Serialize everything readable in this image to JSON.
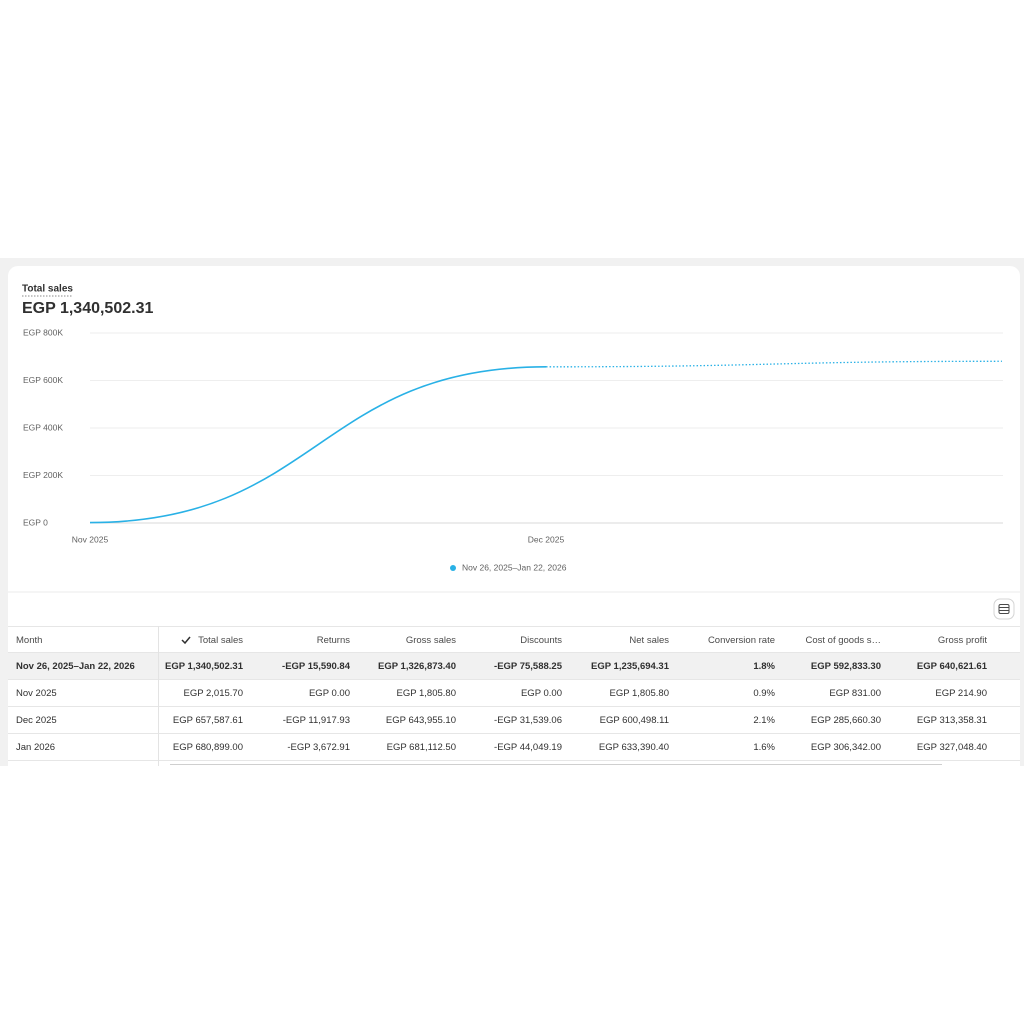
{
  "chart_data": {
    "type": "line",
    "title": "Total sales",
    "subtitle": "EGP 1,340,502.31",
    "categories": [
      "Nov 2025",
      "Dec 2025",
      null
    ],
    "series": [
      {
        "name": "Nov 26, 2025–Jan 22, 2026",
        "color": "#29b1e6",
        "values": [
          2015.7,
          657587.61,
          680899.0
        ]
      }
    ],
    "ylim": [
      0,
      800000
    ],
    "yticks": [
      {
        "value": 0,
        "label": "EGP 0"
      },
      {
        "value": 200000,
        "label": "EGP 200K"
      },
      {
        "value": 400000,
        "label": "EGP 400K"
      },
      {
        "value": 600000,
        "label": "EGP 600K"
      },
      {
        "value": 800000,
        "label": "EGP 800K"
      }
    ],
    "grid": true,
    "legend": "bottom"
  },
  "table": {
    "columns": [
      "Month",
      "Total sales",
      "Returns",
      "Gross sales",
      "Discounts",
      "Net sales",
      "Conversion rate",
      "Cost of goods s…",
      "Gross profit"
    ],
    "rows": [
      [
        "Nov 26, 2025–Jan 22, 2026",
        "EGP 1,340,502.31",
        "-EGP 15,590.84",
        "EGP 1,326,873.40",
        "-EGP 75,588.25",
        "EGP 1,235,694.31",
        "1.8%",
        "EGP 592,833.30",
        "EGP 640,621.61"
      ],
      [
        "Nov 2025",
        "EGP 2,015.70",
        "EGP 0.00",
        "EGP 1,805.80",
        "EGP 0.00",
        "EGP 1,805.80",
        "0.9%",
        "EGP 831.00",
        "EGP 214.90"
      ],
      [
        "Dec 2025",
        "EGP 657,587.61",
        "-EGP 11,917.93",
        "EGP 643,955.10",
        "-EGP 31,539.06",
        "EGP 600,498.11",
        "2.1%",
        "EGP 285,660.30",
        "EGP 313,358.31"
      ],
      [
        "Jan 2026",
        "EGP 680,899.00",
        "-EGP 3,672.91",
        "EGP 681,112.50",
        "-EGP 44,049.19",
        "EGP 633,390.40",
        "1.6%",
        "EGP 306,342.00",
        "EGP 327,048.40"
      ]
    ]
  }
}
